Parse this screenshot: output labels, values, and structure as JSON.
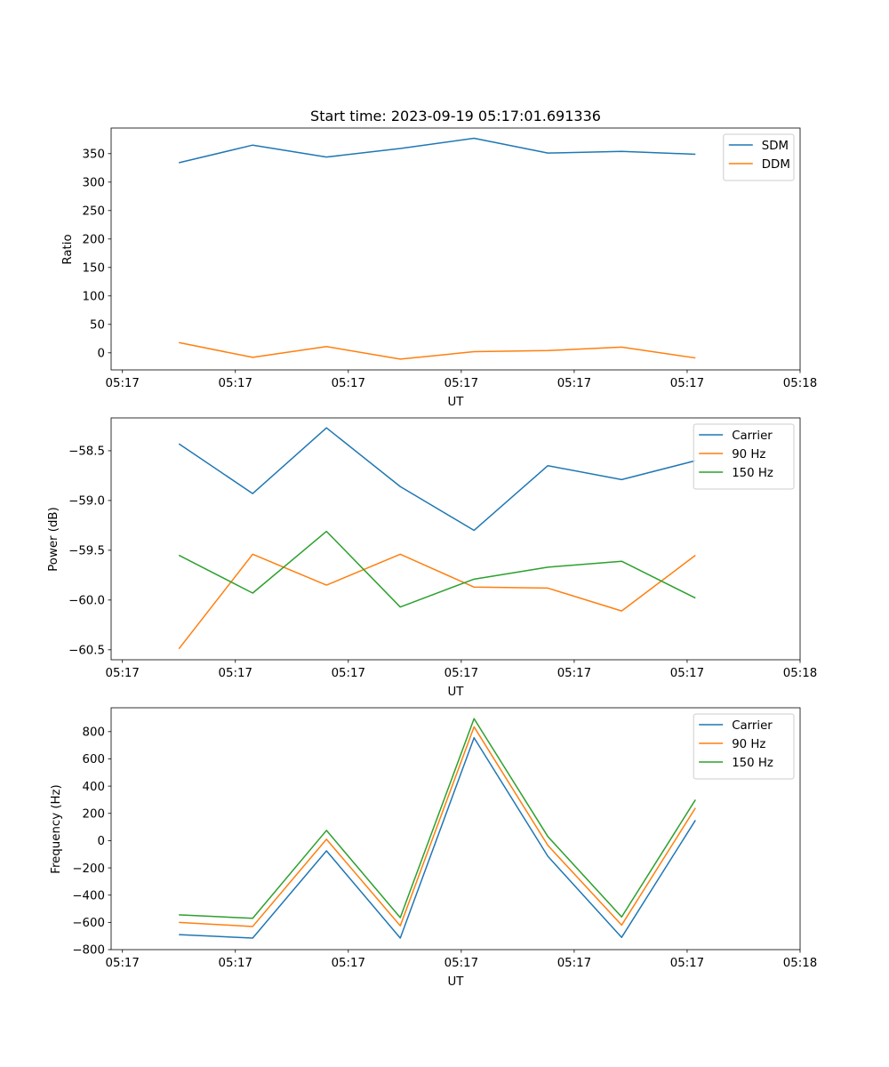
{
  "chart_data": [
    {
      "type": "line",
      "title": "Start time: 2023-09-19 05:17:01.691336",
      "xlabel": "UT",
      "ylabel": "Ratio",
      "xlim": [
        -0.15,
        9.0
      ],
      "ylim": [
        -30,
        395
      ],
      "xtick_values": [
        0,
        1.5,
        3,
        4.5,
        6,
        7.5,
        9
      ],
      "xtick_labels": [
        "05:17",
        "05:17",
        "05:17",
        "05:17",
        "05:17",
        "05:17",
        "05:18"
      ],
      "ytick_values": [
        0,
        50,
        100,
        150,
        200,
        250,
        300,
        350
      ],
      "ytick_labels": [
        "0",
        "50",
        "100",
        "150",
        "200",
        "250",
        "300",
        "350"
      ],
      "x": [
        0.75,
        1.73,
        2.71,
        3.69,
        4.67,
        5.65,
        6.63,
        7.61
      ],
      "legend_position": "upper-right",
      "series": [
        {
          "name": "SDM",
          "color": "#1f77b4",
          "values": [
            334,
            365,
            344,
            359,
            377,
            351,
            354,
            349
          ]
        },
        {
          "name": "DDM",
          "color": "#ff7f0e",
          "values": [
            18,
            -8,
            11,
            -11,
            2,
            4,
            10,
            -9
          ]
        }
      ]
    },
    {
      "type": "line",
      "title": "",
      "xlabel": "UT",
      "ylabel": "Power (dB)",
      "xlim": [
        -0.15,
        9.0
      ],
      "ylim": [
        -60.6,
        -58.17
      ],
      "xtick_values": [
        0,
        1.5,
        3,
        4.5,
        6,
        7.5,
        9
      ],
      "xtick_labels": [
        "05:17",
        "05:17",
        "05:17",
        "05:17",
        "05:17",
        "05:17",
        "05:18"
      ],
      "ytick_values": [
        -60.5,
        -60.0,
        -59.5,
        -59.0,
        -58.5
      ],
      "ytick_labels": [
        "−60.5",
        "−60.0",
        "−59.5",
        "−59.0",
        "−58.5"
      ],
      "x": [
        0.75,
        1.73,
        2.71,
        3.69,
        4.67,
        5.65,
        6.63,
        7.61
      ],
      "legend_position": "upper-right",
      "series": [
        {
          "name": "Carrier",
          "color": "#1f77b4",
          "values": [
            -58.43,
            -58.93,
            -58.27,
            -58.86,
            -59.3,
            -58.65,
            -58.79,
            -58.6
          ]
        },
        {
          "name": "90 Hz",
          "color": "#ff7f0e",
          "values": [
            -60.49,
            -59.54,
            -59.85,
            -59.54,
            -59.87,
            -59.88,
            -60.11,
            -59.55
          ]
        },
        {
          "name": "150 Hz",
          "color": "#2ca02c",
          "values": [
            -59.55,
            -59.93,
            -59.31,
            -60.07,
            -59.79,
            -59.67,
            -59.61,
            -59.98
          ]
        }
      ]
    },
    {
      "type": "line",
      "title": "",
      "xlabel": "UT",
      "ylabel": "Frequency (Hz)",
      "xlim": [
        -0.15,
        9.0
      ],
      "ylim": [
        -800,
        975
      ],
      "xtick_values": [
        0,
        1.5,
        3,
        4.5,
        6,
        7.5,
        9
      ],
      "xtick_labels": [
        "05:17",
        "05:17",
        "05:17",
        "05:17",
        "05:17",
        "05:17",
        "05:18"
      ],
      "ytick_values": [
        -800,
        -600,
        -400,
        -200,
        0,
        200,
        400,
        600,
        800
      ],
      "ytick_labels": [
        "−800",
        "−600",
        "−400",
        "−200",
        "0",
        "200",
        "400",
        "600",
        "800"
      ],
      "x": [
        0.75,
        1.73,
        2.71,
        3.69,
        4.67,
        5.65,
        6.63,
        7.61
      ],
      "legend_position": "upper-right",
      "series": [
        {
          "name": "Carrier",
          "color": "#1f77b4",
          "values": [
            -690,
            -715,
            -75,
            -715,
            755,
            -115,
            -710,
            150
          ]
        },
        {
          "name": "90 Hz",
          "color": "#ff7f0e",
          "values": [
            -600,
            -630,
            10,
            -625,
            835,
            -35,
            -620,
            240
          ]
        },
        {
          "name": "150 Hz",
          "color": "#2ca02c",
          "values": [
            -545,
            -570,
            75,
            -565,
            895,
            30,
            -560,
            300
          ]
        }
      ]
    }
  ]
}
